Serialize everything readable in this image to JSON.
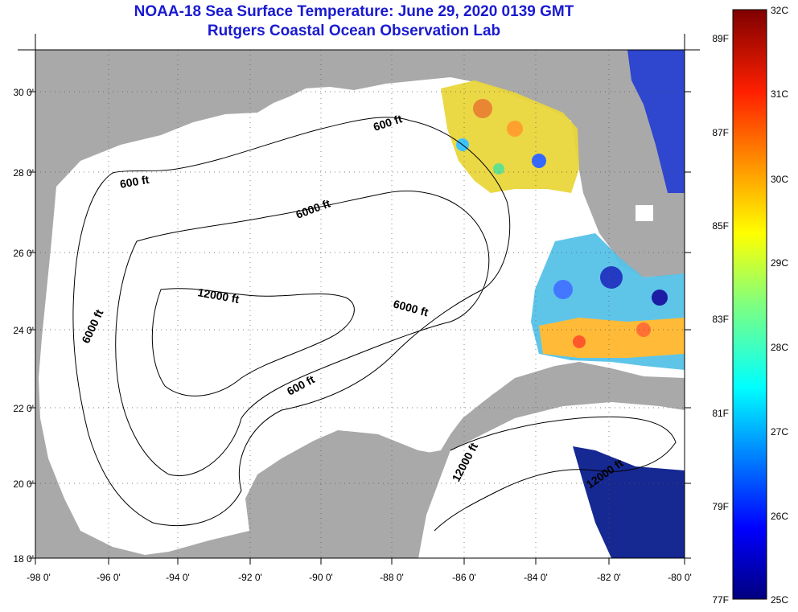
{
  "title": "NOAA-18 Sea Surface Temperature:  June 29, 2020 0139 GMT",
  "subtitle": "Rutgers Coastal Ocean Observation Lab",
  "map": {
    "lat_labels": [
      "30 0'",
      "28 0'",
      "26 0'",
      "24 0'",
      "22 0'",
      "20 0'",
      "18 0'"
    ],
    "lon_labels": [
      "-98 0'",
      "-96 0'",
      "-94 0'",
      "-92 0'",
      "-90 0'",
      "-88 0'",
      "-86 0'",
      "-84 0'",
      "-82 0'",
      "-80 0'"
    ],
    "contour_labels": [
      "600 ft",
      "600 ft",
      "600 ft",
      "6000 ft",
      "6000 ft",
      "6000 ft",
      "12000 ft",
      "12000 ft",
      "12000 ft"
    ],
    "land_color": "#a9a9a9",
    "ocean_color": "#ffffff"
  },
  "colorbar": {
    "fahrenheit_labels": [
      "89F",
      "87F",
      "85F",
      "83F",
      "81F",
      "79F",
      "77F"
    ],
    "celsius_labels": [
      "32C",
      "31C",
      "30C",
      "29C",
      "28C",
      "27C",
      "26C",
      "25C"
    ],
    "range_c": [
      25,
      32
    ],
    "range_f": [
      77,
      89.6
    ]
  }
}
